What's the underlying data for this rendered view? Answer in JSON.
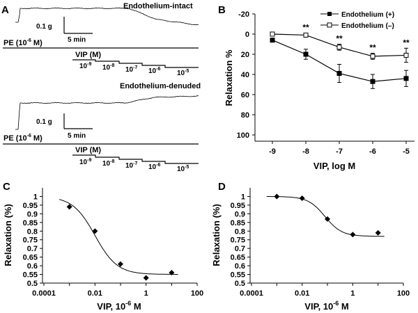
{
  "colors": {
    "ink": "#000000",
    "background": "#ffffff"
  },
  "chart_data": [
    {
      "panel": "A",
      "type": "trace",
      "traces": [
        {
          "label": "Endothelium-intact",
          "scale_y": "0.1 g",
          "scale_x": "5 min",
          "agonist": "PE (10",
          "agonist_exp": "-6",
          "agonist_unit": " M)",
          "drug": "VIP (M)",
          "steps": [
            {
              "base": "10",
              "exp": "-9"
            },
            {
              "base": "10",
              "exp": "-8"
            },
            {
              "base": "10",
              "exp": "-7"
            },
            {
              "base": "10",
              "exp": "-6"
            },
            {
              "base": "10",
              "exp": "-5"
            }
          ]
        },
        {
          "label": "Endothelium-denuded",
          "scale_y": "0.1 g",
          "scale_x": "5 min",
          "agonist": "PE (10",
          "agonist_exp": "-6",
          "agonist_unit": " M)",
          "drug": "VIP (M)",
          "steps": [
            {
              "base": "10",
              "exp": "-9"
            },
            {
              "base": "10",
              "exp": "-8"
            },
            {
              "base": "10",
              "exp": "-7"
            },
            {
              "base": "10",
              "exp": "-6"
            },
            {
              "base": "10",
              "exp": "-5"
            }
          ]
        }
      ]
    },
    {
      "panel": "B",
      "type": "line",
      "xlabel": "VIP, log M",
      "ylabel": "Relaxation %",
      "x": [
        -9,
        -8,
        -7,
        -6,
        -5
      ],
      "x_tick_labels": [
        "-9",
        "-8",
        "-7",
        "-6",
        "-5"
      ],
      "y_ticks": [
        -20,
        0,
        20,
        40,
        60,
        80,
        100
      ],
      "y_tick_labels": [
        "-20",
        "0",
        "20",
        "40",
        "60",
        "80",
        "100"
      ],
      "ylim": [
        -20,
        100
      ],
      "y_inverted": true,
      "series": [
        {
          "name": "Endothelium",
          "sign": "(+)",
          "marker": "filled-square",
          "values": [
            6,
            20,
            39,
            47,
            44
          ],
          "errors": [
            2,
            5,
            9,
            7,
            8
          ]
        },
        {
          "name": "Endothelium",
          "sign": "(–)",
          "marker": "open-square",
          "values": [
            0,
            1,
            13,
            22,
            21
          ],
          "errors": [
            1,
            2,
            3,
            3,
            7
          ]
        }
      ],
      "annotations": [
        {
          "x": -8,
          "text": "**"
        },
        {
          "x": -7,
          "text": "**"
        },
        {
          "x": -6,
          "text": "**"
        },
        {
          "x": -5,
          "text": "**"
        }
      ]
    },
    {
      "panel": "C",
      "type": "scatter",
      "xlabel": "VIP, 10",
      "xlabel_exp": "-6",
      "xlabel_unit": " M",
      "ylabel": "Relaxation (%)",
      "x_scale": "log",
      "xlim": [
        0.0001,
        100
      ],
      "x_ticks": [
        0.0001,
        0.01,
        1,
        100
      ],
      "x_tick_labels": [
        "0.0001",
        "0.01",
        "1",
        "100"
      ],
      "ylim": [
        0.5,
        1.05
      ],
      "y_ticks": [
        0.5,
        0.55,
        0.6,
        0.65,
        0.7,
        0.75,
        0.8,
        0.85,
        0.9,
        0.95,
        1
      ],
      "y_tick_labels": [
        "0.5",
        "0.55",
        "0.6",
        "0.65",
        "0.7",
        "0.75",
        "0.8",
        "0.85",
        "0.9",
        "0.95",
        "1"
      ],
      "points": {
        "x": [
          0.001,
          0.01,
          0.1,
          1,
          10
        ],
        "y": [
          0.94,
          0.8,
          0.61,
          0.53,
          0.56
        ]
      },
      "fit": {
        "top": 1.0,
        "bottom": 0.55,
        "log_ec50": -2.0,
        "hill": 1.0
      }
    },
    {
      "panel": "D",
      "type": "scatter",
      "xlabel": "VIP, 10",
      "xlabel_exp": "-6",
      "xlabel_unit": " M",
      "ylabel": "Relaxation (%)",
      "x_scale": "log",
      "xlim": [
        0.0001,
        100
      ],
      "x_ticks": [
        0.0001,
        0.01,
        1,
        100
      ],
      "x_tick_labels": [
        "0.0001",
        "0.01",
        "1",
        "100"
      ],
      "ylim": [
        0.5,
        1.05
      ],
      "y_ticks": [
        0.5,
        0.55,
        0.6,
        0.65,
        0.7,
        0.75,
        0.8,
        0.85,
        0.9,
        0.95,
        1
      ],
      "y_tick_labels": [
        "0.5",
        "0.55",
        "0.6",
        "0.65",
        "0.7",
        "0.75",
        "0.8",
        "0.85",
        "0.9",
        "0.95",
        "1"
      ],
      "points": {
        "x": [
          0.001,
          0.01,
          0.1,
          1,
          10
        ],
        "y": [
          1.0,
          0.99,
          0.87,
          0.78,
          0.79
        ]
      },
      "fit": {
        "top": 1.0,
        "bottom": 0.77,
        "log_ec50": -1.1,
        "hill": 1.3
      }
    }
  ]
}
